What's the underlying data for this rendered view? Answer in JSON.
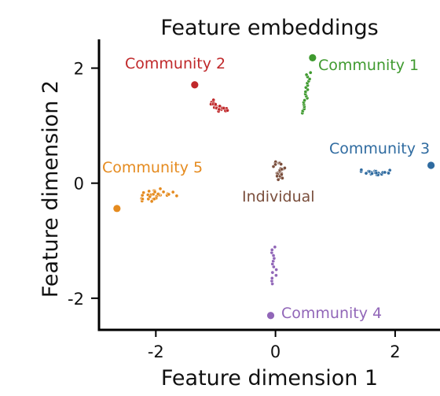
{
  "chart_data": {
    "type": "scatter",
    "title": "Feature embeddings",
    "xlabel": "Feature dimension 1",
    "ylabel": "Feature dimension 2",
    "xlim": [
      -2.95,
      2.75
    ],
    "ylim": [
      -2.55,
      2.5
    ],
    "xticks": [
      -2,
      0,
      2
    ],
    "yticks": [
      -2,
      0,
      2
    ],
    "grid": false,
    "legend": "none",
    "groups": [
      {
        "label": "Community 1",
        "color": "#3f9a2f",
        "anchor": [
          0.62,
          2.18
        ],
        "cluster": {
          "center": [
            0.52,
            1.57
          ],
          "spread": [
            0.04,
            0.22
          ],
          "n": 20,
          "axis": "vertical",
          "tilt": 0.15
        }
      },
      {
        "label": "Community 2",
        "color": "#c0282a",
        "anchor": [
          -1.35,
          1.71
        ],
        "cluster": {
          "center": [
            -0.95,
            1.32
          ],
          "spread": [
            0.09,
            0.09
          ],
          "n": 22,
          "axis": "diagonal",
          "tilt": -0.6
        }
      },
      {
        "label": "Community 3",
        "color": "#2f6ba0",
        "anchor": [
          2.6,
          0.31
        ],
        "cluster": {
          "center": [
            1.72,
            0.19
          ],
          "spread": [
            0.2,
            0.04
          ],
          "n": 22,
          "axis": "horizontal",
          "tilt": 0.0
        }
      },
      {
        "label": "Community 4",
        "color": "#9166b8",
        "anchor": [
          -0.08,
          -2.3
        ],
        "cluster": {
          "center": [
            -0.03,
            -1.43
          ],
          "spread": [
            0.03,
            0.2
          ],
          "n": 14,
          "axis": "vertical",
          "tilt": 0.0
        }
      },
      {
        "label": "Community 5",
        "color": "#e58b1f",
        "anchor": [
          -2.65,
          -0.44
        ],
        "cluster": {
          "center": [
            -1.97,
            -0.19
          ],
          "spread": [
            0.2,
            0.08
          ],
          "n": 32,
          "axis": "horizontal",
          "tilt": 0.1
        }
      },
      {
        "label": "Individual",
        "color": "#7a4e3c",
        "anchor": null,
        "cluster": {
          "center": [
            0.06,
            0.22
          ],
          "spread": [
            0.11,
            0.11
          ],
          "n": 26,
          "axis": "round",
          "tilt": 0.0
        }
      }
    ]
  }
}
